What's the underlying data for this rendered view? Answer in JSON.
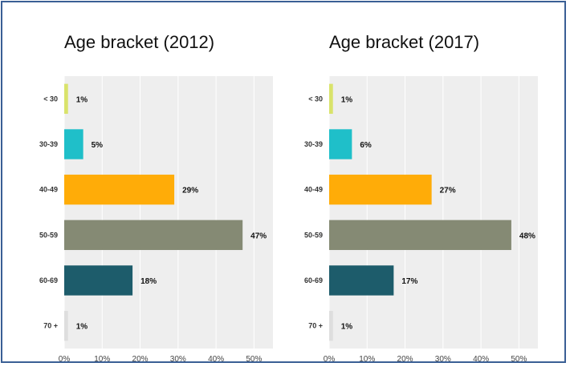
{
  "chart_data": [
    {
      "type": "bar",
      "orientation": "horizontal",
      "title": "Age bracket (2012)",
      "categories": [
        "< 30",
        "30-39",
        "40-49",
        "50-59",
        "60-69",
        "70 +"
      ],
      "values": [
        1,
        5,
        29,
        47,
        18,
        1
      ],
      "data_labels": [
        "1%",
        "5%",
        "29%",
        "47%",
        "18%",
        "1%"
      ],
      "xlim": [
        0,
        55
      ],
      "x_ticks": [
        "0%",
        "10%",
        "20%",
        "30%",
        "40%",
        "50%"
      ],
      "grid": true,
      "colors": [
        "#d9e36b",
        "#1fbfc9",
        "#ffac08",
        "#858a74",
        "#1d5c6b",
        "#dedede"
      ]
    },
    {
      "type": "bar",
      "orientation": "horizontal",
      "title": "Age bracket (2017)",
      "categories": [
        "< 30",
        "30-39",
        "40-49",
        "50-59",
        "60-69",
        "70 +"
      ],
      "values": [
        1,
        6,
        27,
        48,
        17,
        1
      ],
      "data_labels": [
        "1%",
        "6%",
        "27%",
        "48%",
        "17%",
        "1%"
      ],
      "xlim": [
        0,
        55
      ],
      "x_ticks": [
        "0%",
        "10%",
        "20%",
        "30%",
        "40%",
        "50%"
      ],
      "grid": true,
      "colors": [
        "#d9e36b",
        "#1fbfc9",
        "#ffac08",
        "#858a74",
        "#1d5c6b",
        "#dedede"
      ]
    }
  ],
  "colors": {
    "frame_border": "#3a5f95",
    "plot_background": "#eeeeee",
    "grid": "#ffffff"
  }
}
